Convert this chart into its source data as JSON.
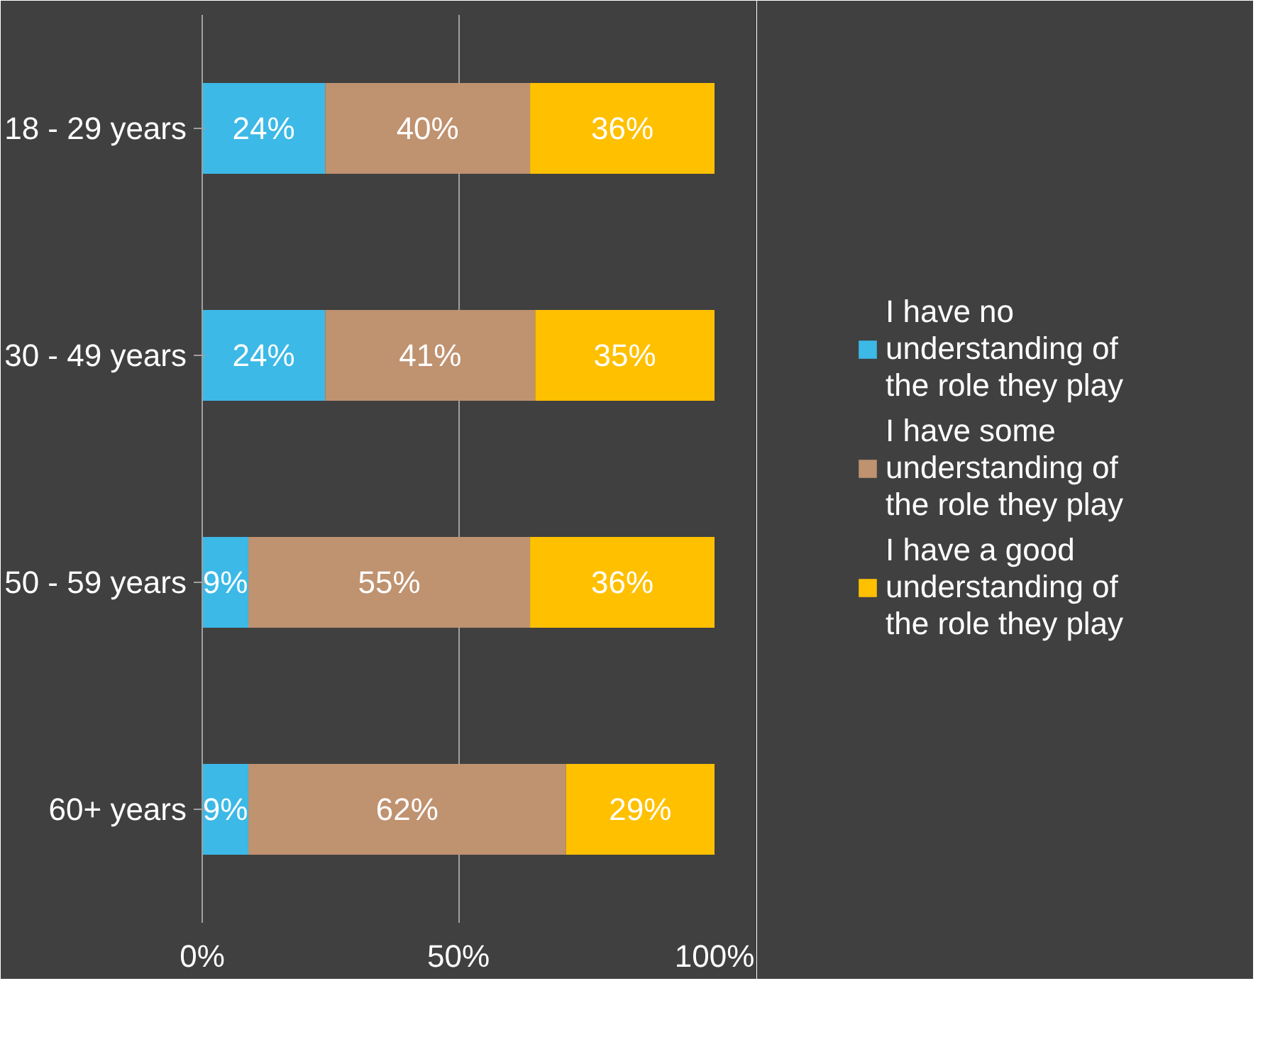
{
  "chart_data": {
    "type": "bar",
    "orientation": "horizontal",
    "stacked": true,
    "categories": [
      "18 - 29 years",
      "30 - 49 years",
      "50 - 59 years",
      "60+ years"
    ],
    "series": [
      {
        "name": "I have no understanding of the role they play",
        "color": "#3cb9e6",
        "values": [
          24,
          24,
          9,
          9
        ],
        "value_labels": [
          "24%",
          "24%",
          "9%",
          "9%"
        ]
      },
      {
        "name": "I have some understanding of the role they play",
        "color": "#bf9270",
        "values": [
          40,
          41,
          55,
          62
        ],
        "value_labels": [
          "40%",
          "41%",
          "55%",
          "62%"
        ]
      },
      {
        "name": "I have a good understanding of the role they play",
        "color": "#ffc000",
        "values": [
          36,
          35,
          36,
          29
        ],
        "value_labels": [
          "36%",
          "35%",
          "36%",
          "29%"
        ]
      }
    ],
    "xlim": [
      0,
      100
    ],
    "xticks": [
      {
        "value": 0,
        "label": "0%"
      },
      {
        "value": 50,
        "label": "50%"
      },
      {
        "value": 100,
        "label": "100%"
      }
    ],
    "grid": "x",
    "legend": "right"
  }
}
